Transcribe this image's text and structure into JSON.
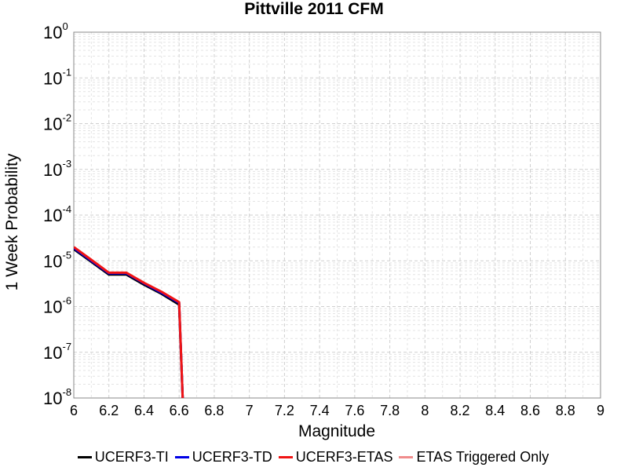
{
  "chart_data": {
    "type": "line",
    "title": "Pittville 2011 CFM",
    "xlabel": "Magnitude",
    "ylabel": "1 Week Probability",
    "xlim": [
      6,
      9
    ],
    "ylim": [
      1e-08,
      1
    ],
    "yscale": "log",
    "x_ticks": [
      "6",
      "6.2",
      "6.4",
      "6.6",
      "6.8",
      "7",
      "7.2",
      "7.4",
      "7.6",
      "7.8",
      "8",
      "8.2",
      "8.4",
      "8.6",
      "8.8",
      "9"
    ],
    "y_ticks": [
      {
        "base": "10",
        "exp": "0"
      },
      {
        "base": "10",
        "exp": "-1"
      },
      {
        "base": "10",
        "exp": "-2"
      },
      {
        "base": "10",
        "exp": "-3"
      },
      {
        "base": "10",
        "exp": "-4"
      },
      {
        "base": "10",
        "exp": "-5"
      },
      {
        "base": "10",
        "exp": "-6"
      },
      {
        "base": "10",
        "exp": "-7"
      },
      {
        "base": "10",
        "exp": "-8"
      }
    ],
    "grid": true,
    "legend_position": "bottom",
    "series": [
      {
        "name": "UCERF3-TI",
        "color": "#000000",
        "x": [
          6.0,
          6.1,
          6.2,
          6.3,
          6.4,
          6.5,
          6.6,
          6.62
        ],
        "y": [
          1.8e-05,
          9.5e-06,
          5e-06,
          5e-06,
          3e-06,
          1.9e-06,
          1.1e-06,
          1e-08
        ]
      },
      {
        "name": "UCERF3-TD",
        "color": "#0000e6",
        "x": [
          6.0,
          6.1,
          6.2,
          6.3,
          6.4,
          6.5,
          6.6,
          6.62
        ],
        "y": [
          1.9e-05,
          1e-05,
          5.3e-06,
          5.3e-06,
          3.2e-06,
          2e-06,
          1.2e-06,
          1e-08
        ]
      },
      {
        "name": "UCERF3-ETAS",
        "color": "#f01414",
        "x": [
          6.0,
          6.1,
          6.2,
          6.3,
          6.4,
          6.5,
          6.6,
          6.62
        ],
        "y": [
          2e-05,
          1.05e-05,
          5.5e-06,
          5.5e-06,
          3.3e-06,
          2.1e-06,
          1.25e-06,
          1e-08
        ]
      },
      {
        "name": "ETAS Triggered Only",
        "color": "#f08c8c",
        "x": [],
        "y": []
      }
    ]
  }
}
